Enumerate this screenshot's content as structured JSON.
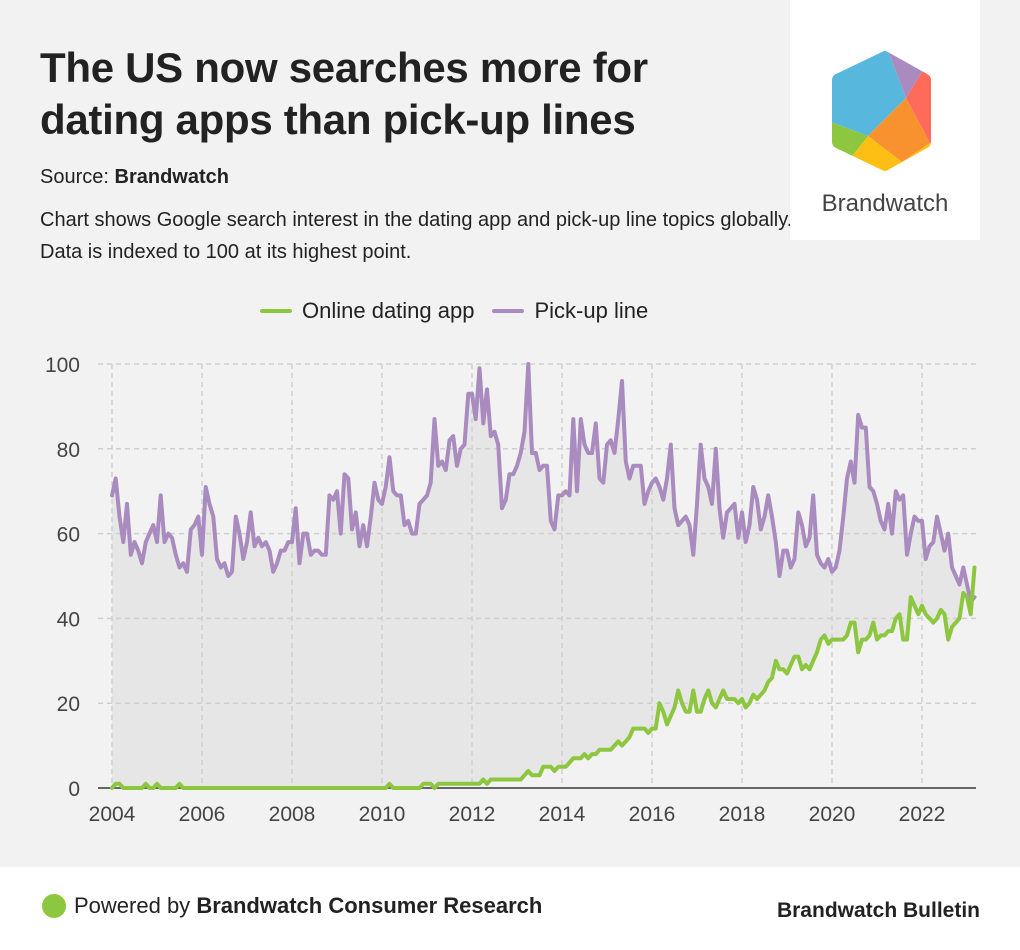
{
  "header": {
    "title": "The US now searches more for dating apps than pick-up lines",
    "source_label": "Source:",
    "source_name": "Brandwatch",
    "description": "Chart shows Google search interest in the dating app and pick-up line topics globally. Data is indexed to 100 at its highest point."
  },
  "logo": {
    "name": "Brandwatch",
    "colors": {
      "blue": "#58b7dd",
      "purple": "#a98bbf",
      "red": "#ff6b5b",
      "orange": "#f7922f",
      "yellow": "#fdbf14",
      "green": "#8dc63f"
    }
  },
  "footer": {
    "powered_by": "Powered by",
    "powered_name": "Brandwatch Consumer Research",
    "brand_right": "Brandwatch Bulletin"
  },
  "chart_data": {
    "type": "line",
    "title": "The US now searches more for dating apps than pick-up lines",
    "xlabel": "",
    "ylabel": "",
    "ylim": [
      0,
      100
    ],
    "xlim": [
      2004.0,
      2022.92
    ],
    "x_start": "2004-01",
    "frequency": "monthly",
    "yticks": [
      "0",
      "20",
      "40",
      "60",
      "80",
      "100"
    ],
    "xticks": [
      "2004",
      "2006",
      "2008",
      "2010",
      "2012",
      "2014",
      "2016",
      "2018",
      "2020",
      "2022"
    ],
    "grid": true,
    "legend_position": "top-center",
    "series": [
      {
        "name": "Online dating app",
        "color": "#8dc63f",
        "values": [
          0,
          1,
          1,
          0,
          0,
          0,
          0,
          0,
          0,
          1,
          0,
          0,
          1,
          0,
          0,
          0,
          0,
          0,
          1,
          0,
          0,
          0,
          0,
          0,
          0,
          0,
          0,
          0,
          0,
          0,
          0,
          0,
          0,
          0,
          0,
          0,
          0,
          0,
          0,
          0,
          0,
          0,
          0,
          0,
          0,
          0,
          0,
          0,
          0,
          0,
          0,
          0,
          0,
          0,
          0,
          0,
          0,
          0,
          0,
          0,
          0,
          0,
          0,
          0,
          0,
          0,
          0,
          0,
          0,
          0,
          0,
          0,
          0,
          0,
          1,
          0,
          0,
          0,
          0,
          0,
          0,
          0,
          0,
          1,
          1,
          1,
          0,
          1,
          1,
          1,
          1,
          1,
          1,
          1,
          1,
          1,
          1,
          1,
          1,
          2,
          1,
          2,
          2,
          2,
          2,
          2,
          2,
          2,
          2,
          2,
          3,
          4,
          3,
          3,
          3,
          5,
          5,
          5,
          4,
          5,
          5,
          5,
          6,
          7,
          7,
          7,
          8,
          7,
          8,
          8,
          9,
          9,
          9,
          9,
          10,
          11,
          10,
          11,
          12,
          14,
          14,
          14,
          14,
          13,
          14,
          14,
          20,
          18,
          15,
          17,
          19,
          23,
          20,
          18,
          18,
          23,
          18,
          18,
          21,
          23,
          20,
          19,
          21,
          23,
          21,
          21,
          21,
          20,
          21,
          19,
          20,
          22,
          21,
          22,
          23,
          25,
          26,
          30,
          28,
          28,
          27,
          29,
          31,
          31,
          28,
          29,
          28,
          30,
          32,
          35,
          36,
          34,
          35,
          35,
          35,
          35,
          36,
          39,
          39,
          32,
          35,
          35,
          36,
          39,
          35,
          36,
          36,
          37,
          37,
          40,
          41,
          35,
          35,
          45,
          43,
          41,
          43,
          41,
          40,
          39,
          40,
          42,
          41,
          35,
          38,
          39,
          40,
          46,
          45,
          41,
          52
        ]
      },
      {
        "name": "Pick-up line",
        "color": "#a98bbf",
        "values": [
          69,
          73,
          64,
          58,
          67,
          55,
          58,
          56,
          53,
          58,
          60,
          62,
          58,
          69,
          58,
          60,
          59,
          55,
          52,
          53,
          51,
          61,
          62,
          64,
          55,
          71,
          67,
          64,
          54,
          52,
          53,
          50,
          51,
          64,
          60,
          54,
          58,
          65,
          57,
          59,
          57,
          58,
          56,
          51,
          53,
          56,
          56,
          58,
          58,
          66,
          53,
          60,
          60,
          55,
          56,
          56,
          55,
          55,
          69,
          68,
          70,
          60,
          74,
          73,
          61,
          65,
          57,
          62,
          57,
          64,
          72,
          68,
          67,
          71,
          78,
          70,
          69,
          69,
          62,
          63,
          60,
          60,
          67,
          68,
          69,
          72,
          87,
          76,
          77,
          75,
          82,
          83,
          76,
          80,
          81,
          93,
          93,
          87,
          99,
          86,
          94,
          83,
          84,
          81,
          66,
          68,
          74,
          74,
          76,
          79,
          84,
          100,
          79,
          79,
          75,
          76,
          76,
          63,
          61,
          69,
          69,
          70,
          69,
          87,
          70,
          87,
          81,
          79,
          79,
          86,
          73,
          72,
          81,
          82,
          79,
          87,
          96,
          77,
          73,
          76,
          76,
          76,
          67,
          70,
          72,
          73,
          71,
          68,
          73,
          81,
          66,
          62,
          63,
          64,
          62,
          55,
          67,
          81,
          73,
          71,
          67,
          80,
          66,
          59,
          65,
          66,
          67,
          59,
          65,
          58,
          62,
          71,
          68,
          61,
          64,
          69,
          64,
          58,
          50,
          56,
          56,
          52,
          54,
          65,
          62,
          57,
          59,
          69,
          55,
          53,
          52,
          54,
          51,
          52,
          56,
          64,
          73,
          77,
          72,
          88,
          85,
          85,
          71,
          70,
          67,
          63,
          61,
          67,
          60,
          70,
          68,
          69,
          55,
          60,
          64,
          63,
          63,
          54,
          57,
          58,
          64,
          60,
          56,
          60,
          52,
          50,
          48,
          52,
          48,
          44,
          45
        ]
      }
    ]
  }
}
